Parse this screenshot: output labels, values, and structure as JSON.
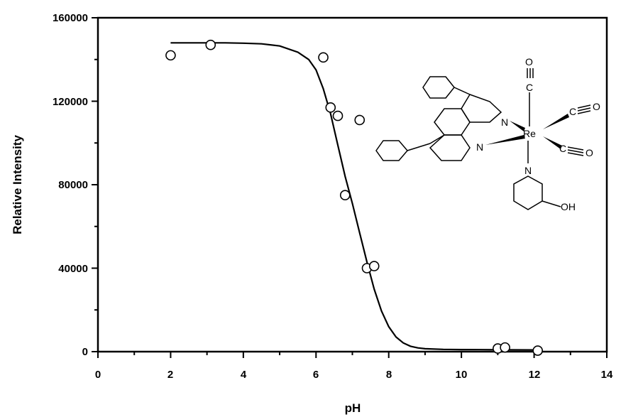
{
  "chart_data": {
    "type": "scatter",
    "xlabel": "pH",
    "ylabel": "Relative Intensity",
    "xlim": [
      0,
      14
    ],
    "ylim": [
      0,
      160000
    ],
    "x_ticks": [
      "0",
      "2",
      "4",
      "6",
      "8",
      "10",
      "12",
      "14"
    ],
    "y_ticks": [
      "0",
      "40000",
      "80000",
      "120000",
      "160000"
    ],
    "grid": false,
    "legend": "none",
    "series": [
      {
        "kind": "points",
        "marker": "open-circle",
        "x": [
          2.0,
          3.1,
          6.2,
          6.4,
          6.6,
          6.8,
          7.2,
          7.4,
          7.6,
          11.0,
          11.2,
          12.1
        ],
        "y": [
          142000,
          147000,
          141000,
          117000,
          113000,
          75000,
          111000,
          40000,
          41000,
          1500,
          2000,
          500
        ]
      },
      {
        "kind": "fit-line",
        "x": [
          2.0,
          2.5,
          3.0,
          3.5,
          4.0,
          4.5,
          5.0,
          5.5,
          5.8,
          6.0,
          6.2,
          6.4,
          6.6,
          6.8,
          7.0,
          7.2,
          7.4,
          7.6,
          7.8,
          8.0,
          8.2,
          8.4,
          8.6,
          8.8,
          9.0,
          9.5,
          10.0,
          10.5,
          11.0,
          11.5,
          12.0
        ],
        "y": [
          148000,
          148000,
          148000,
          148000,
          147800,
          147500,
          146500,
          143500,
          140000,
          135000,
          126000,
          114000,
          99000,
          84000,
          71000,
          57000,
          43000,
          30000,
          19500,
          12000,
          7000,
          4200,
          2600,
          1800,
          1400,
          1100,
          1000,
          950,
          900,
          850,
          800
        ]
      }
    ]
  },
  "structure": {
    "atoms": {
      "metal": "Re",
      "nitrogen": "N",
      "carbon": "C",
      "oxygen": "O",
      "hydroxyl": "OH"
    }
  }
}
